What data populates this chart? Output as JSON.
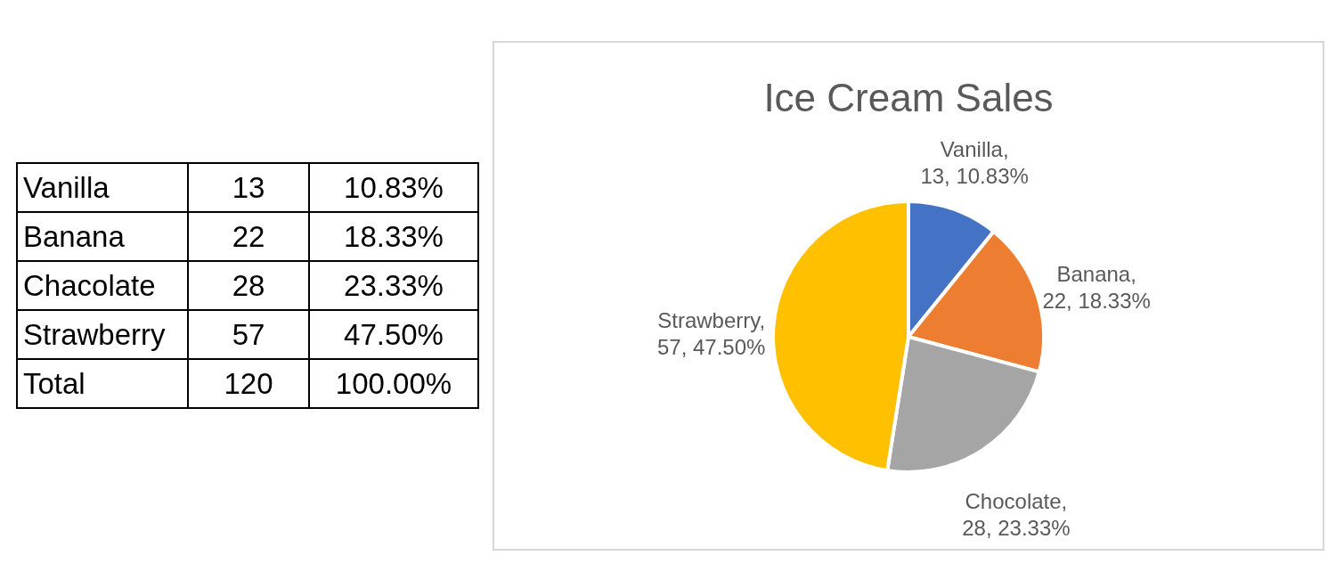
{
  "chart_data": [
    {
      "type": "other",
      "annotations": [
        "Vanilla",
        "13",
        "10.83%",
        "Banana",
        "22",
        "18.33%",
        "Chacolate",
        "28",
        "23.33%",
        "Strawberry",
        "57",
        "47.50%",
        "Total",
        "120",
        "100.00%"
      ]
    },
    {
      "type": "pie",
      "title": "Ice Cream Sales",
      "categories": [
        "Vanilla",
        "Banana",
        "Chocolate",
        "Strawberry"
      ],
      "values": [
        13,
        22,
        28,
        57
      ],
      "colors": [
        "#4472c4",
        "#ed7d31",
        "#a5a5a5",
        "#ffc000"
      ],
      "value_labels": [
        ", 13, 10.83%",
        ", 22, 18.33%",
        ", 28, 23.33%",
        ", 57, 47.50%"
      ],
      "legend": false
    }
  ]
}
